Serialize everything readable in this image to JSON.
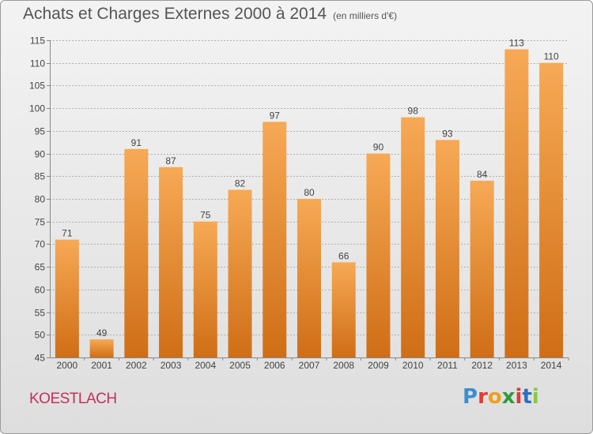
{
  "title": "Achats et Charges Externes 2000 à 2014",
  "subtitle": "(en milliers d'€)",
  "location": "KOESTLACH",
  "brand": {
    "letters": [
      "P",
      "r",
      "o",
      "x",
      "i",
      "t",
      "i"
    ],
    "colors": [
      "#3a8fd1",
      "#e6392f",
      "#f0a01c",
      "#2f9b3c",
      "#e6392f",
      "#2f6fc0",
      "#8cc63f"
    ]
  },
  "colors": {
    "bar_top": "#f7a955",
    "bar_bottom": "#cf6e16",
    "axis": "#888888",
    "grid": "#b0b0b0",
    "text": "#444444"
  },
  "chart_data": {
    "type": "bar",
    "categories": [
      "2000",
      "2001",
      "2002",
      "2003",
      "2004",
      "2005",
      "2006",
      "2007",
      "2008",
      "2009",
      "2010",
      "2011",
      "2012",
      "2013",
      "2014"
    ],
    "values": [
      71,
      49,
      91,
      87,
      75,
      82,
      97,
      80,
      66,
      90,
      98,
      93,
      84,
      113,
      110
    ],
    "ylim": [
      45,
      115
    ],
    "yticks": [
      45,
      50,
      55,
      60,
      65,
      70,
      75,
      80,
      85,
      90,
      95,
      100,
      105,
      110,
      115
    ],
    "data_labels": true,
    "grid": true,
    "xlabel": "",
    "ylabel": ""
  }
}
